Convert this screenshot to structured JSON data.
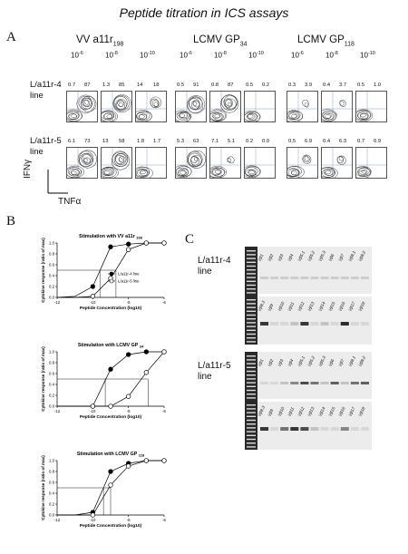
{
  "figure_title": "Peptide titration in ICS assays",
  "panels": {
    "a": "A",
    "b": "B",
    "c": "C"
  },
  "panelA": {
    "groups": [
      {
        "prefix": "VV a11r",
        "sub": "198"
      },
      {
        "prefix": "LCMV GP",
        "sub": "34"
      },
      {
        "prefix": "LCMV GP",
        "sub": "118"
      }
    ],
    "conc_base": "10",
    "concs": [
      "-6",
      "-8",
      "-10"
    ],
    "rows": [
      {
        "label_l1": "L/a11r-4",
        "label_l2": "line",
        "quad": [
          [
            "0.7",
            "87"
          ],
          [
            "1.3",
            "85"
          ],
          [
            "14",
            "18"
          ],
          [
            "0.5",
            "91"
          ],
          [
            "0.8",
            "87"
          ],
          [
            "0.5",
            "0.2"
          ],
          [
            "0.3",
            "3.9"
          ],
          [
            "0.4",
            "3.7"
          ],
          [
            "0.5",
            "1.0"
          ]
        ]
      },
      {
        "label_l1": "L/a11r-5",
        "label_l2": "line",
        "quad": [
          [
            "6.1",
            "73"
          ],
          [
            "13",
            "58"
          ],
          [
            "1.8",
            "1.7"
          ],
          [
            "5.3",
            "63"
          ],
          [
            "7.1",
            "5.1"
          ],
          [
            "0.2",
            "0.0"
          ],
          [
            "0.5",
            "6.9"
          ],
          [
            "0.4",
            "6.3"
          ],
          [
            "0.7",
            "0.9"
          ]
        ]
      }
    ],
    "y_axis": "IFNγ",
    "x_axis": "TNFα"
  },
  "chart_data": [
    {
      "type": "line",
      "title_prefix": "Stimulation with VV a11r",
      "title_sub": "198",
      "xlabel": "Peptide Concentration (log10)",
      "ylabel": "Cytokine response (ratio of max)",
      "xlim": [
        -12,
        -6
      ],
      "ylim": [
        0,
        1.0
      ],
      "xticks": [
        "-12",
        "-10",
        "-8",
        "-6"
      ],
      "yticks": [
        "0.0",
        "0.2",
        "0.4",
        "0.6",
        "0.8",
        "1.0"
      ],
      "legend": [
        "L/a11r-4 line",
        "L/a11r-5 line"
      ],
      "series": [
        {
          "name": "L/a11r-4 line",
          "x": [
            -12,
            -11,
            -10,
            -9,
            -8,
            -7,
            -6
          ],
          "y": [
            0,
            0.02,
            0.2,
            0.93,
            0.98,
            1.0,
            1.0
          ]
        },
        {
          "name": "L/a11r-5 line",
          "x": [
            -12,
            -11,
            -10,
            -9,
            -8,
            -7,
            -6
          ],
          "y": [
            0,
            0.0,
            0.02,
            0.35,
            0.88,
            1.0,
            1.0
          ]
        }
      ],
      "ec50_x": [
        -9.6,
        -8.7
      ]
    },
    {
      "type": "line",
      "title_prefix": "Stimulation with LCMV GP",
      "title_sub": "34",
      "xlabel": "Peptide Concentration (log10)",
      "ylabel": "Cytokine response (ratio of max)",
      "xlim": [
        -12,
        -6
      ],
      "ylim": [
        0,
        1.0
      ],
      "xticks": [
        "-12",
        "-10",
        "-8",
        "-6"
      ],
      "yticks": [
        "0.0",
        "0.2",
        "0.4",
        "0.6",
        "0.8",
        "1.0"
      ],
      "series": [
        {
          "name": "L/a11r-4 line",
          "x": [
            -12,
            -11,
            -10,
            -9,
            -8,
            -7,
            -6
          ],
          "y": [
            0,
            0.0,
            0.0,
            0.68,
            0.95,
            1.0,
            1.0
          ]
        },
        {
          "name": "L/a11r-5 line",
          "x": [
            -12,
            -11,
            -10,
            -9,
            -8,
            -7,
            -6
          ],
          "y": [
            0,
            0.0,
            0.0,
            0.0,
            0.18,
            0.62,
            1.0
          ]
        }
      ],
      "ec50_x": [
        -9.3,
        -6.9
      ]
    },
    {
      "type": "line",
      "title_prefix": "Stimulation with LCMV GP",
      "title_sub": "118",
      "xlabel": "Peptide Concentration (log10)",
      "ylabel": "Cytokine response (ratio of max)",
      "xlim": [
        -12,
        -6
      ],
      "ylim": [
        0,
        1.0
      ],
      "xticks": [
        "-12",
        "-10",
        "-8",
        "-6"
      ],
      "yticks": [
        "0.0",
        "0.2",
        "0.4",
        "0.6",
        "0.8",
        "1.0"
      ],
      "series": [
        {
          "name": "L/a11r-4 line",
          "x": [
            -12,
            -11,
            -10,
            -9,
            -8,
            -7,
            -6
          ],
          "y": [
            0,
            0.0,
            0.05,
            0.8,
            0.95,
            1.0,
            1.0
          ]
        },
        {
          "name": "L/a11r-5 line",
          "x": [
            -12,
            -11,
            -10,
            -9,
            -8,
            -7,
            -6
          ],
          "y": [
            0,
            0.0,
            0.0,
            0.55,
            0.9,
            1.0,
            1.0
          ]
        }
      ],
      "ec50_x": [
        -9.4,
        -9.0
      ]
    }
  ],
  "panelC": {
    "gels": [
      {
        "label_l1": "L/a11r-4",
        "label_l2": "line",
        "top_lanes": [
          "Vβ1",
          "Vβ2",
          "Vβ3",
          "Vβ4",
          "Vβ5.1",
          "Vβ5.2",
          "Vβ5.3",
          "Vβ6",
          "Vβ7",
          "Vβ8.1",
          "Vβ8.2"
        ],
        "bot_lanes": [
          "Vβ8.3",
          "Vβ9",
          "Vβ10",
          "Vβ11",
          "Vβ12",
          "Vβ13",
          "Vβ14",
          "Vβ15",
          "Vβ16",
          "Vβ17",
          "Vβ18"
        ]
      },
      {
        "label_l1": "L/a11r-5",
        "label_l2": "line",
        "top_lanes": [
          "Vβ1",
          "Vβ2",
          "Vβ3",
          "Vβ4",
          "Vβ5.1",
          "Vβ5.2",
          "Vβ5.3",
          "Vβ6",
          "Vβ7",
          "Vβ8.1",
          "Vβ8.2"
        ],
        "bot_lanes": [
          "Vβ8.3",
          "Vβ9",
          "Vβ10",
          "Vβ11",
          "Vβ12",
          "Vβ13",
          "Vβ14",
          "Vβ15",
          "Vβ16",
          "Vβ17",
          "Vβ18"
        ]
      }
    ]
  }
}
